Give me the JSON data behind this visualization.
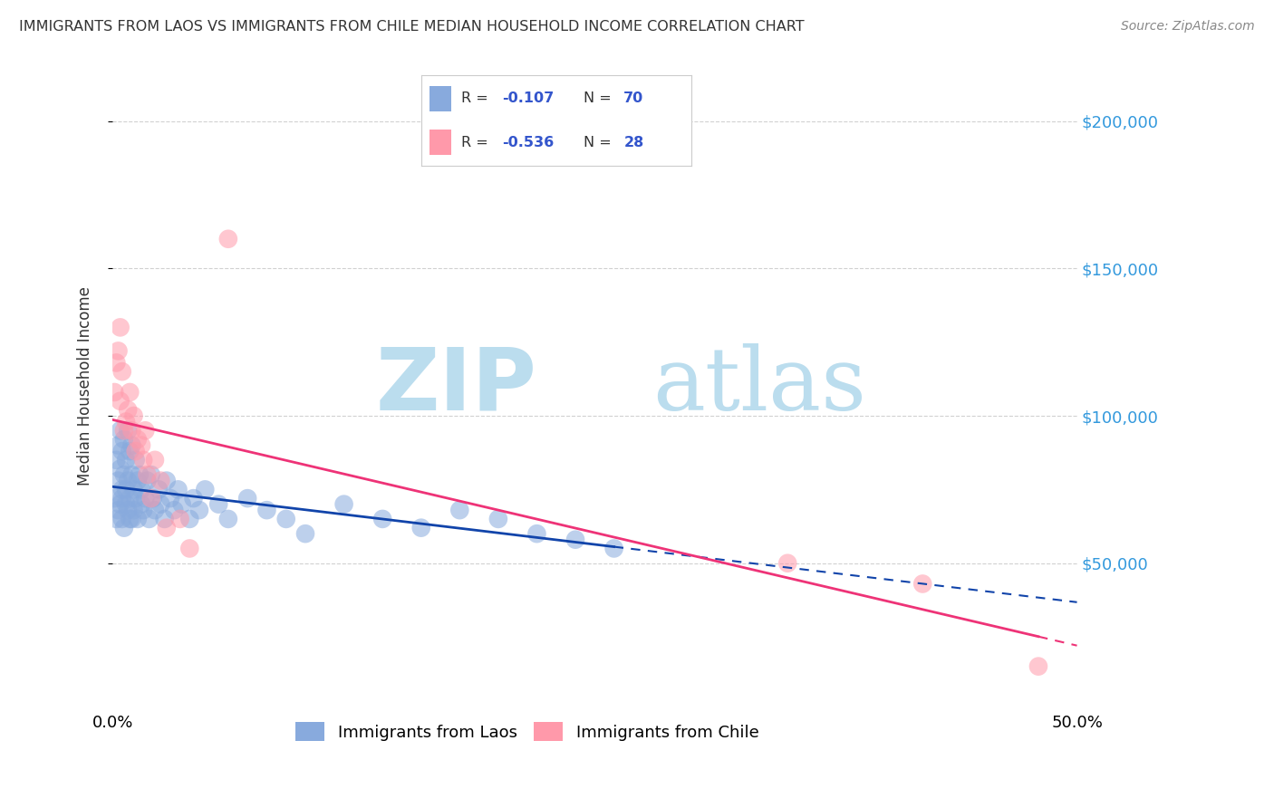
{
  "title": "IMMIGRANTS FROM LAOS VS IMMIGRANTS FROM CHILE MEDIAN HOUSEHOLD INCOME CORRELATION CHART",
  "source": "Source: ZipAtlas.com",
  "ylabel": "Median Household Income",
  "xlim": [
    0.0,
    0.5
  ],
  "ylim": [
    0,
    220000
  ],
  "ytick_values": [
    50000,
    100000,
    150000,
    200000
  ],
  "ytick_labels": [
    "$50,000",
    "$100,000",
    "$150,000",
    "$200,000"
  ],
  "legend_label1_r": "-0.107",
  "legend_label1_n": "70",
  "legend_label2_r": "-0.536",
  "legend_label2_n": "28",
  "legend_entry1": "Immigrants from Laos",
  "legend_entry2": "Immigrants from Chile",
  "color_laos": "#88AADD",
  "color_chile": "#FF99AA",
  "trendline_laos_color": "#1144AA",
  "trendline_chile_color": "#EE3377",
  "watermark_zip_color": "#BBDDEE",
  "watermark_atlas_color": "#BBDDEE",
  "background_color": "#FFFFFF",
  "laos_x": [
    0.001,
    0.002,
    0.002,
    0.003,
    0.003,
    0.003,
    0.004,
    0.004,
    0.004,
    0.005,
    0.005,
    0.005,
    0.005,
    0.006,
    0.006,
    0.006,
    0.007,
    0.007,
    0.007,
    0.008,
    0.008,
    0.008,
    0.009,
    0.009,
    0.009,
    0.01,
    0.01,
    0.01,
    0.011,
    0.011,
    0.012,
    0.012,
    0.013,
    0.013,
    0.014,
    0.015,
    0.015,
    0.016,
    0.017,
    0.018,
    0.019,
    0.02,
    0.021,
    0.022,
    0.024,
    0.025,
    0.027,
    0.028,
    0.03,
    0.032,
    0.034,
    0.036,
    0.04,
    0.042,
    0.045,
    0.048,
    0.055,
    0.06,
    0.07,
    0.08,
    0.09,
    0.1,
    0.12,
    0.14,
    0.16,
    0.18,
    0.2,
    0.22,
    0.24,
    0.26
  ],
  "laos_y": [
    72000,
    65000,
    85000,
    78000,
    68000,
    90000,
    82000,
    70000,
    95000,
    75000,
    88000,
    65000,
    72000,
    80000,
    62000,
    92000,
    70000,
    85000,
    75000,
    68000,
    95000,
    78000,
    65000,
    88000,
    72000,
    80000,
    65000,
    90000,
    75000,
    68000,
    85000,
    72000,
    78000,
    65000,
    80000,
    70000,
    75000,
    68000,
    72000,
    78000,
    65000,
    80000,
    72000,
    68000,
    75000,
    70000,
    65000,
    78000,
    72000,
    68000,
    75000,
    70000,
    65000,
    72000,
    68000,
    75000,
    70000,
    65000,
    72000,
    68000,
    65000,
    60000,
    70000,
    65000,
    62000,
    68000,
    65000,
    60000,
    58000,
    55000
  ],
  "chile_x": [
    0.001,
    0.002,
    0.003,
    0.004,
    0.004,
    0.005,
    0.006,
    0.007,
    0.008,
    0.009,
    0.01,
    0.011,
    0.012,
    0.013,
    0.015,
    0.016,
    0.017,
    0.018,
    0.02,
    0.022,
    0.025,
    0.028,
    0.035,
    0.04,
    0.06,
    0.35,
    0.42,
    0.48
  ],
  "chile_y": [
    108000,
    118000,
    122000,
    105000,
    130000,
    115000,
    95000,
    98000,
    102000,
    108000,
    95000,
    100000,
    88000,
    92000,
    90000,
    85000,
    95000,
    80000,
    72000,
    85000,
    78000,
    62000,
    65000,
    55000,
    160000,
    50000,
    43000,
    15000
  ]
}
